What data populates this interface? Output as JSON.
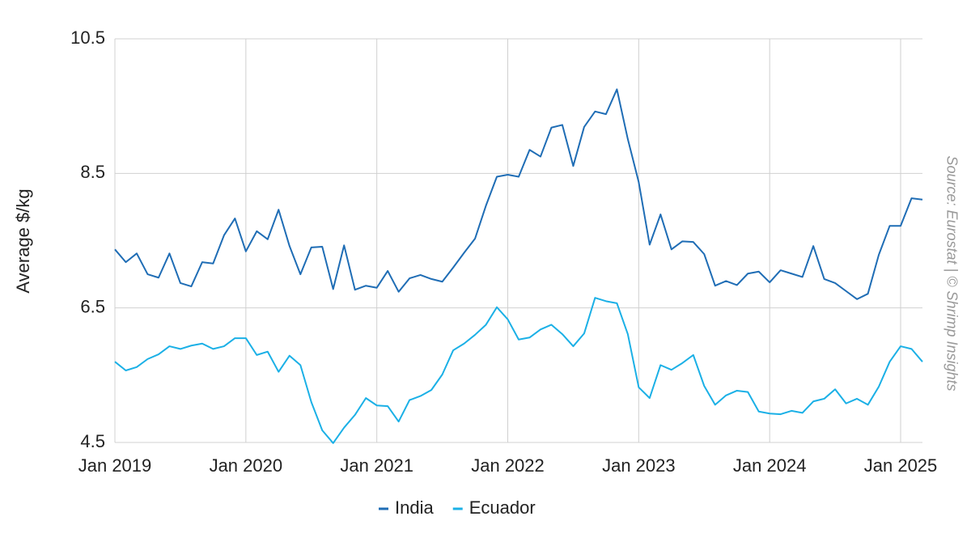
{
  "chart_data": {
    "type": "line",
    "y_label": "Average $/kg",
    "source": "Source: Eurostat | © Shrimp Insights",
    "x": [
      "2019-01",
      "2019-02",
      "2019-03",
      "2019-04",
      "2019-05",
      "2019-06",
      "2019-07",
      "2019-08",
      "2019-09",
      "2019-10",
      "2019-11",
      "2019-12",
      "2020-01",
      "2020-02",
      "2020-03",
      "2020-04",
      "2020-05",
      "2020-06",
      "2020-07",
      "2020-08",
      "2020-09",
      "2020-10",
      "2020-11",
      "2020-12",
      "2021-01",
      "2021-02",
      "2021-03",
      "2021-04",
      "2021-05",
      "2021-06",
      "2021-07",
      "2021-08",
      "2021-09",
      "2021-10",
      "2021-11",
      "2021-12",
      "2022-01",
      "2022-02",
      "2022-03",
      "2022-04",
      "2022-05",
      "2022-06",
      "2022-07",
      "2022-08",
      "2022-09",
      "2022-10",
      "2022-11",
      "2022-12",
      "2023-01",
      "2023-02",
      "2023-03",
      "2023-04",
      "2023-05",
      "2023-06",
      "2023-07",
      "2023-08",
      "2023-09",
      "2023-10",
      "2023-11",
      "2023-12",
      "2024-01",
      "2024-02",
      "2024-03",
      "2024-04",
      "2024-05",
      "2024-06",
      "2024-07",
      "2024-08",
      "2024-09",
      "2024-10",
      "2024-11",
      "2024-12",
      "2025-01",
      "2025-02",
      "2025-03"
    ],
    "series": [
      {
        "name": "India",
        "color": "#1f6db5",
        "values": [
          7.37,
          7.18,
          7.31,
          7.0,
          6.95,
          7.31,
          6.87,
          6.82,
          7.18,
          7.16,
          7.58,
          7.83,
          7.34,
          7.64,
          7.52,
          7.96,
          7.42,
          7.0,
          7.4,
          7.41,
          6.78,
          7.43,
          6.77,
          6.83,
          6.8,
          7.05,
          6.74,
          6.94,
          6.99,
          6.93,
          6.89,
          7.1,
          7.32,
          7.53,
          8.02,
          8.45,
          8.48,
          8.45,
          8.85,
          8.75,
          9.18,
          9.22,
          8.61,
          9.19,
          9.42,
          9.38,
          9.75,
          9.01,
          8.37,
          7.44,
          7.89,
          7.37,
          7.49,
          7.48,
          7.3,
          6.83,
          6.9,
          6.84,
          7.01,
          7.04,
          6.88,
          7.06,
          7.01,
          6.96,
          7.42,
          6.93,
          6.87,
          6.75,
          6.63,
          6.71,
          7.29,
          7.72,
          7.72,
          8.13,
          8.11
        ]
      },
      {
        "name": "Ecuador",
        "color": "#1bb0e6",
        "values": [
          5.7,
          5.57,
          5.62,
          5.74,
          5.81,
          5.93,
          5.89,
          5.94,
          5.97,
          5.89,
          5.93,
          6.05,
          6.05,
          5.8,
          5.85,
          5.55,
          5.79,
          5.65,
          5.1,
          4.68,
          4.49,
          4.72,
          4.91,
          5.16,
          5.05,
          5.04,
          4.81,
          5.13,
          5.19,
          5.28,
          5.51,
          5.87,
          5.97,
          6.1,
          6.25,
          6.51,
          6.33,
          6.03,
          6.06,
          6.18,
          6.25,
          6.11,
          5.93,
          6.12,
          6.65,
          6.6,
          6.57,
          6.11,
          5.32,
          5.16,
          5.65,
          5.58,
          5.68,
          5.8,
          5.34,
          5.06,
          5.2,
          5.27,
          5.25,
          4.96,
          4.93,
          4.92,
          4.97,
          4.94,
          5.11,
          5.15,
          5.29,
          5.08,
          5.15,
          5.06,
          5.33,
          5.7,
          5.93,
          5.89,
          5.7
        ]
      }
    ],
    "xlim": [
      "2019-01",
      "2025-03"
    ],
    "xticks": [
      {
        "value": "2019-01",
        "label": "Jan 2019"
      },
      {
        "value": "2020-01",
        "label": "Jan 2020"
      },
      {
        "value": "2021-01",
        "label": "Jan 2021"
      },
      {
        "value": "2022-01",
        "label": "Jan 2022"
      },
      {
        "value": "2023-01",
        "label": "Jan 2023"
      },
      {
        "value": "2024-01",
        "label": "Jan 2024"
      },
      {
        "value": "2025-01",
        "label": "Jan 2025"
      }
    ],
    "ylim": [
      4.5,
      10.5
    ],
    "yticks": [
      4.5,
      6.5,
      8.5,
      10.5
    ],
    "grid": true,
    "legend": "bottom"
  }
}
